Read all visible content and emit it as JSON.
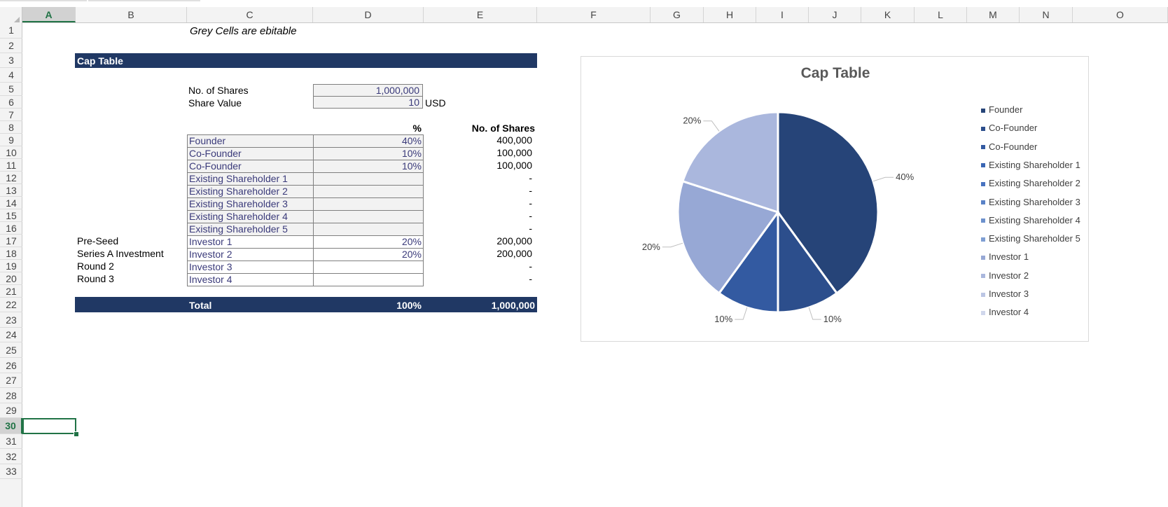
{
  "columns": [
    "A",
    "B",
    "C",
    "D",
    "E",
    "F",
    "G",
    "H",
    "I",
    "J",
    "K",
    "L",
    "M",
    "N",
    "O"
  ],
  "rows": [
    "1",
    "2",
    "3",
    "4",
    "5",
    "6",
    "7",
    "8",
    "9",
    "10",
    "11",
    "12",
    "13",
    "14",
    "15",
    "16",
    "17",
    "18",
    "19",
    "20",
    "21",
    "22",
    "23",
    "24",
    "25",
    "26",
    "27",
    "28",
    "29",
    "30",
    "31",
    "32",
    "33"
  ],
  "active_cell": {
    "col": "A",
    "row": "30"
  },
  "note": "Grey Cells are ebitable",
  "section_title": "Cap Table",
  "inputs": {
    "shares_label": "No. of Shares",
    "shares_value": "1,000,000",
    "value_label": "Share Value",
    "value_value": "10",
    "value_unit": "USD"
  },
  "table": {
    "pct_header": "%",
    "shares_header": "No. of Shares",
    "rows": [
      {
        "round": "",
        "holder": "Founder",
        "pct": "40%",
        "shares": "400,000",
        "grey": true
      },
      {
        "round": "",
        "holder": "Co-Founder",
        "pct": "10%",
        "shares": "100,000",
        "grey": true
      },
      {
        "round": "",
        "holder": "Co-Founder",
        "pct": "10%",
        "shares": "100,000",
        "grey": true
      },
      {
        "round": "",
        "holder": "Existing Shareholder 1",
        "pct": "",
        "shares": "-",
        "grey": true
      },
      {
        "round": "",
        "holder": "Existing Shareholder 2",
        "pct": "",
        "shares": "-",
        "grey": true
      },
      {
        "round": "",
        "holder": "Existing Shareholder 3",
        "pct": "",
        "shares": "-",
        "grey": true
      },
      {
        "round": "",
        "holder": "Existing Shareholder 4",
        "pct": "",
        "shares": "-",
        "grey": true
      },
      {
        "round": "",
        "holder": "Existing Shareholder 5",
        "pct": "",
        "shares": "-",
        "grey": true
      },
      {
        "round": "Pre-Seed",
        "holder": "Investor 1",
        "pct": "20%",
        "shares": "200,000",
        "grey": false
      },
      {
        "round": "Series A Investment",
        "holder": "Investor 2",
        "pct": "20%",
        "shares": "200,000",
        "grey": false
      },
      {
        "round": "Round 2",
        "holder": "Investor 3",
        "pct": "",
        "shares": "-",
        "grey": false
      },
      {
        "round": "Round 3",
        "holder": "Investor 4",
        "pct": "",
        "shares": "-",
        "grey": false
      }
    ],
    "total_label": "Total",
    "total_pct": "100%",
    "total_shares": "1,000,000"
  },
  "chart_data": {
    "type": "pie",
    "title": "Cap Table",
    "categories": [
      "Founder",
      "Co-Founder",
      "Co-Founder",
      "Existing Shareholder 1",
      "Existing Shareholder 2",
      "Existing Shareholder 3",
      "Existing Shareholder 4",
      "Existing Shareholder 5",
      "Investor 1",
      "Investor 2",
      "Investor 3",
      "Investor 4"
    ],
    "values": [
      40,
      10,
      10,
      0,
      0,
      0,
      0,
      0,
      20,
      20,
      0,
      0
    ],
    "data_labels": [
      "40%",
      "10%",
      "10%",
      "",
      "",
      "",
      "",
      "",
      "20%",
      "20%",
      "",
      ""
    ],
    "colors": [
      "#264478",
      "#2c4e8c",
      "#335aa1",
      "#3a66b4",
      "#4873c0",
      "#5a82c7",
      "#6d91cd",
      "#7f9fd3",
      "#97a8d5",
      "#aab7dd",
      "#bcc6e4",
      "#d0d7ec"
    ],
    "legend_position": "right"
  }
}
